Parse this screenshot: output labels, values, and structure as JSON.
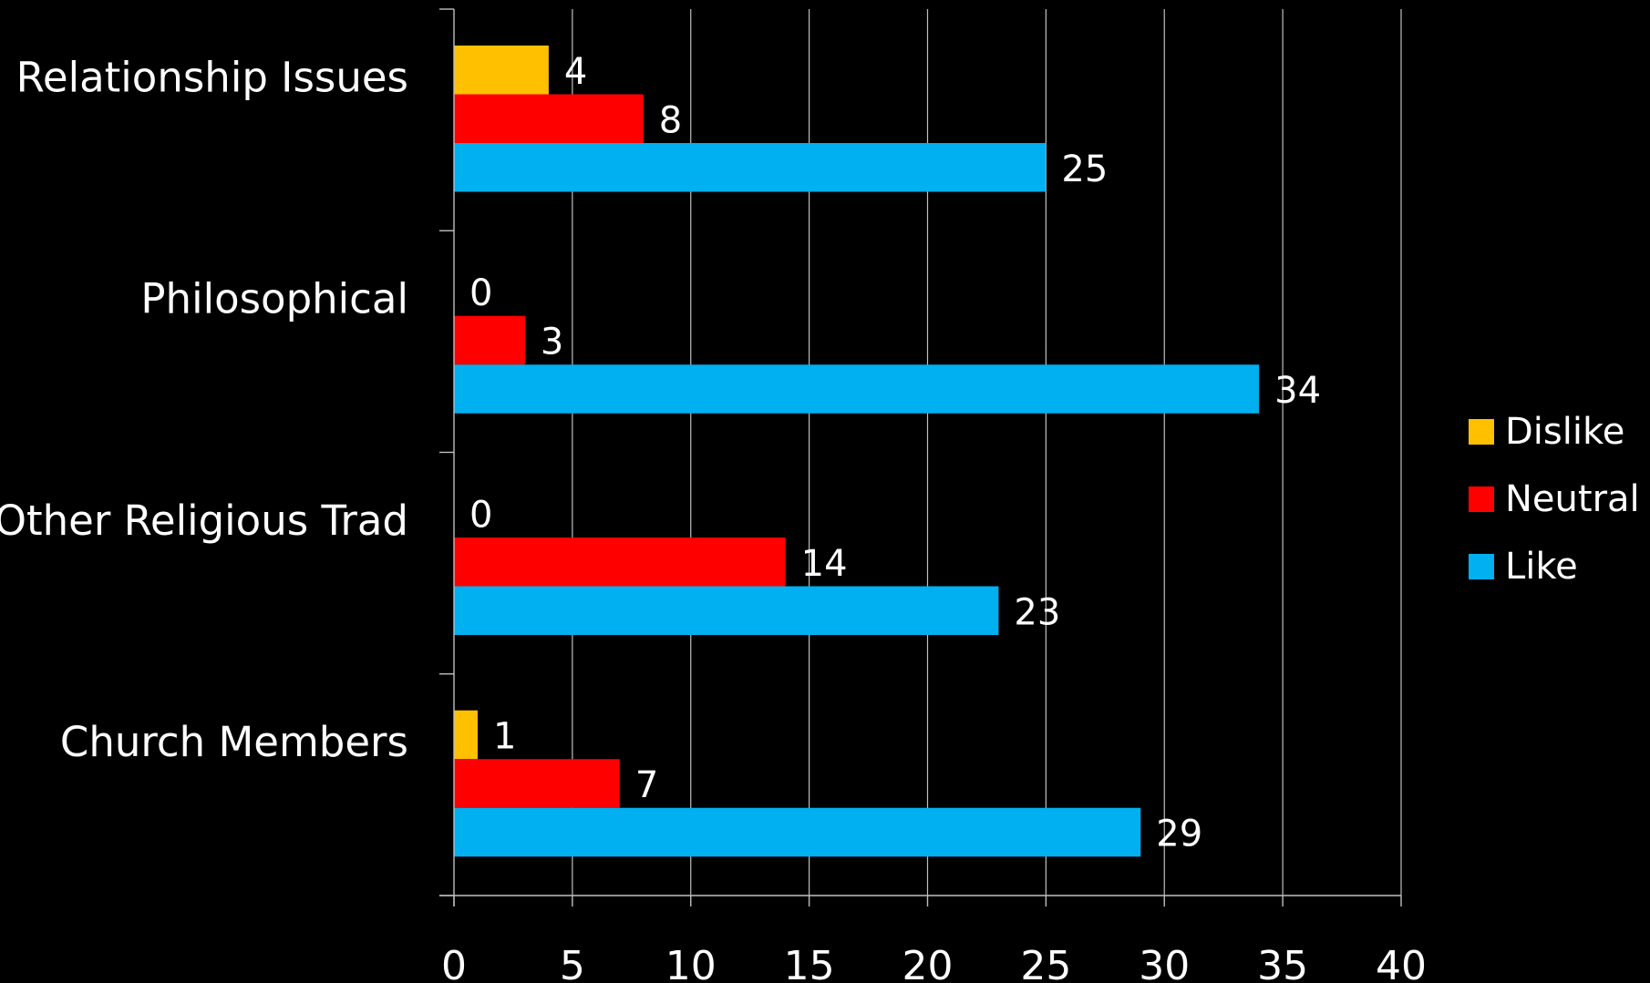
{
  "chart_data": {
    "type": "bar",
    "orientation": "horizontal",
    "categories": [
      "Relationship Issues",
      "Philosophical",
      "Other Religious Trad",
      "Church Members"
    ],
    "series": [
      {
        "name": "Dislike",
        "color": "#FFC000",
        "values": [
          4,
          0,
          0,
          1
        ]
      },
      {
        "name": "Neutral",
        "color": "#FF0000",
        "values": [
          8,
          3,
          14,
          7
        ]
      },
      {
        "name": "Like",
        "color": "#00B0F0",
        "values": [
          25,
          34,
          23,
          29
        ]
      }
    ],
    "x_ticks": [
      "0",
      "5",
      "10",
      "15",
      "20",
      "25",
      "30",
      "35",
      "40"
    ],
    "xlim": [
      0,
      40
    ],
    "grid": "vertical",
    "data_labels": true,
    "legend_position": "right"
  }
}
